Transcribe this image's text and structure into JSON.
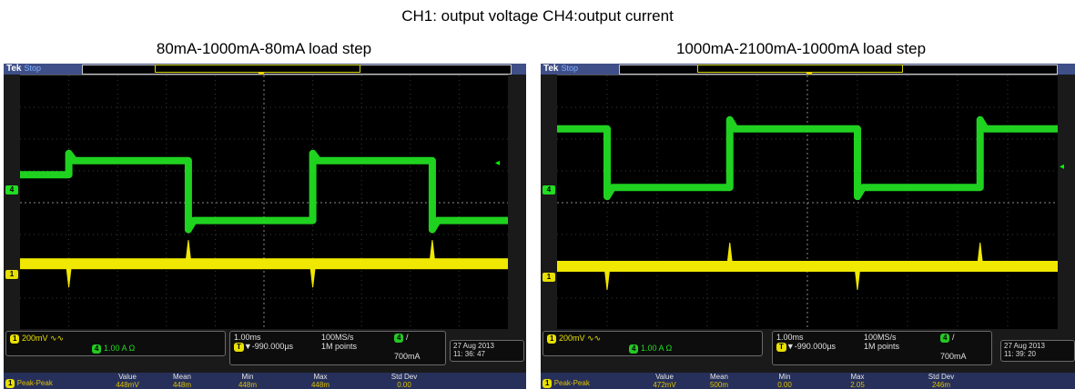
{
  "page_title": "CH1: output voltage  CH4:output current",
  "scopes": [
    {
      "title": "80mA-1000mA-80mA load step",
      "brand": "Tek",
      "state": "Stop",
      "t_label": "T",
      "ch4_marker": "4",
      "ch1_marker": "1",
      "ch1_scale": "200mV",
      "ch1_coupling_icon": "bw-limit-icon",
      "ch4_badge": "4",
      "ch4_scale": "1.00 A",
      "ch4_impedance": "Ω",
      "timebase": "1.00ms",
      "sample_rate": "100MS/s",
      "delay": "▼-990.000µs",
      "record_length": "1M points",
      "trigger_channel": "4",
      "trigger_slope": "/",
      "trigger_level": "700mA",
      "date": "27 Aug  2013",
      "time": "11: 36: 47",
      "meas_headers": [
        "Value",
        "Mean",
        "Min",
        "Max",
        "Std Dev"
      ],
      "meas_type": "Peak-Peak",
      "meas_values": [
        "448mV",
        "448m",
        "448m",
        "448m",
        "0.00"
      ]
    },
    {
      "title": "1000mA-2100mA-1000mA load step",
      "brand": "Tek",
      "state": "Stop",
      "t_label": "T",
      "ch4_marker": "4",
      "ch1_marker": "1",
      "ch1_scale": "200mV",
      "ch1_coupling_icon": "bw-limit-icon",
      "ch4_badge": "4",
      "ch4_scale": "1.00 A",
      "ch4_impedance": "Ω",
      "timebase": "1.00ms",
      "sample_rate": "100MS/s",
      "delay": "▼-990.000µs",
      "record_length": "1M points",
      "trigger_channel": "4",
      "trigger_slope": "/",
      "trigger_level": "700mA",
      "date": "27 Aug  2013",
      "time": "11: 39: 20",
      "meas_headers": [
        "Value",
        "Mean",
        "Min",
        "Max",
        "Std Dev"
      ],
      "meas_type": "Peak-Peak",
      "meas_values": [
        "472mV",
        "500m",
        "0.00",
        "2.05",
        "246m"
      ]
    }
  ],
  "colors": {
    "ch1": "#f0e800",
    "ch4": "#22dd22",
    "frame": "#3f4f88"
  },
  "waveforms": [
    {
      "ch4_levels": [
        0.665,
        0.43,
        0.61
      ],
      "ch4_edges": [
        0.1,
        0.345,
        0.6,
        0.845
      ],
      "ch1_level": 0.26,
      "ch1_spikes": [
        0.1,
        0.345,
        0.6,
        0.845
      ]
    },
    {
      "ch4_levels": [
        0.79,
        0.56,
        0.79
      ],
      "ch4_edges": [
        0.1,
        0.345,
        0.6,
        0.845
      ],
      "ch1_level": 0.25,
      "ch1_spikes": [
        0.1,
        0.345,
        0.6,
        0.845
      ]
    }
  ]
}
